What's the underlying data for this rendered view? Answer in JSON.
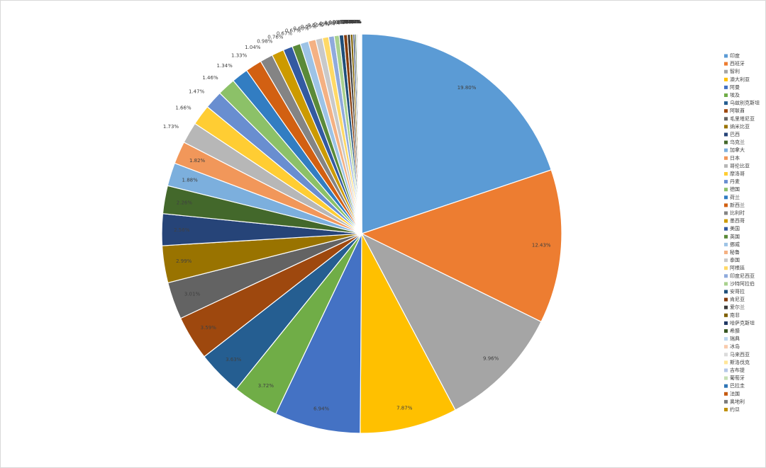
{
  "chart_data": {
    "type": "pie",
    "legend": "right",
    "categories": [
      "印度",
      "西班牙",
      "智利",
      "澳大利亚",
      "阿曼",
      "埃及",
      "乌兹别克斯坦",
      "阿联酋",
      "毛里塔尼亚",
      "纳米比亚",
      "巴西",
      "乌克兰",
      "加拿大",
      "日本",
      "哥伦比亚",
      "摩洛哥",
      "丹麦",
      "德国",
      "荷兰",
      "新西兰",
      "比利时",
      "墨西哥",
      "美国",
      "英国",
      "挪威",
      "秘鲁",
      "泰国",
      "阿根廷",
      "印度尼西亚",
      "沙特阿拉伯",
      "安哥拉",
      "肯尼亚",
      "爱尔兰",
      "南非",
      "哈萨克斯坦",
      "希腊",
      "瑞典",
      "冰岛",
      "马来西亚",
      "斯洛伐克",
      "吉布提",
      "葡萄牙",
      "巴拉圭",
      "法国",
      "奥地利",
      "约旦"
    ],
    "values": [
      19.8,
      12.43,
      9.96,
      7.87,
      6.94,
      3.72,
      3.63,
      3.59,
      3.01,
      2.99,
      2.56,
      2.26,
      1.88,
      1.82,
      1.73,
      1.66,
      1.47,
      1.46,
      1.34,
      1.33,
      1.04,
      0.98,
      0.76,
      0.67,
      0.67,
      0.6,
      0.55,
      0.5,
      0.45,
      0.4,
      0.35,
      0.3,
      0.25,
      0.2,
      0.15,
      0.12,
      0.1,
      0.08,
      0.06,
      0.05,
      0.04,
      0.03,
      0.03,
      0.02,
      0.01,
      0.01
    ],
    "value_labels": [
      "19.80%",
      "12.43%",
      "9.96%",
      "7.87%",
      "6.94%",
      "3.72%",
      "3.63%",
      "3.59%",
      "3.01%",
      "2.99%",
      "2.56%",
      "2.26%",
      "1.88%",
      "1.82%",
      "1.73%",
      "1.66%",
      "1.47%",
      "1.46%",
      "1.34%",
      "1.33%",
      "1.04%",
      "0.98%",
      "0.76%",
      "0.67%",
      "0.67%",
      "0.60%",
      "0.55%",
      "0.50%",
      "0.45%",
      "0.40%",
      "0.35%",
      "0.30%",
      "0.25%",
      "0.20%",
      "0.15%",
      "0.12%",
      "0.10%",
      "0.08%",
      "0.06%",
      "0.05%",
      "0.04%",
      "0.03%",
      "0.03%",
      "0.02%",
      "0.01%",
      "0.01%"
    ],
    "colors": [
      "#5B9BD5",
      "#ED7D31",
      "#A5A5A5",
      "#FFC000",
      "#4472C4",
      "#70AD47",
      "#255E91",
      "#9E480E",
      "#636363",
      "#997300",
      "#264478",
      "#43682B",
      "#7CAFDD",
      "#F1975A",
      "#B7B7B7",
      "#FFCD33",
      "#698ED0",
      "#8CC168",
      "#327DC2",
      "#D26012",
      "#848484",
      "#CC9A00",
      "#335AA1",
      "#5A8A39",
      "#9DC3E6",
      "#F4B183",
      "#C9C9C9",
      "#FFD966",
      "#8FAADC",
      "#A9D18E",
      "#1F4E79",
      "#843C0C",
      "#3B3B3B",
      "#7F6000",
      "#203864",
      "#385723",
      "#BDD7EE",
      "#F8CBAD",
      "#DBDBDB",
      "#FFE699",
      "#B4C7E7",
      "#C5E0B4",
      "#2E75B6",
      "#C55A11",
      "#7B7B7B",
      "#BF9000"
    ]
  }
}
